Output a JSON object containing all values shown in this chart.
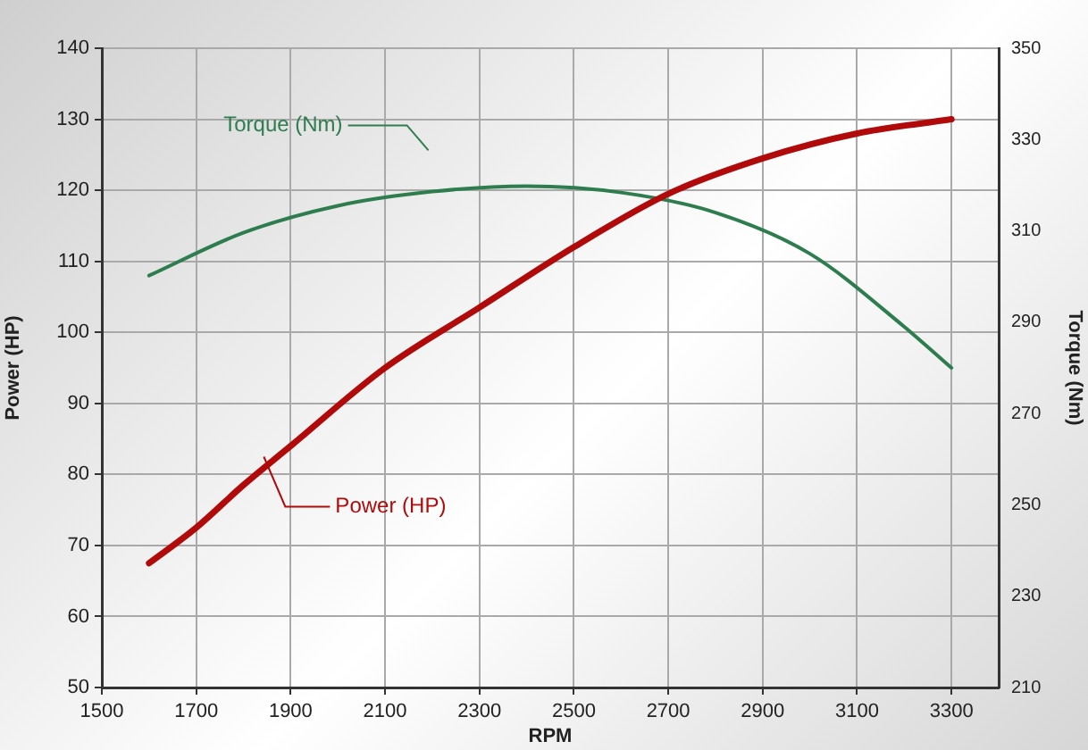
{
  "chart_data": {
    "type": "line",
    "xlabel": "RPM",
    "ylabel": "Power (HP)",
    "y2label": "Torque (Nm)",
    "xlim": [
      1500,
      3400
    ],
    "xticks": [
      1500,
      1700,
      1900,
      2100,
      2300,
      2500,
      2700,
      2900,
      3100,
      3300
    ],
    "ylim": [
      50,
      140
    ],
    "yticks": [
      50,
      60,
      70,
      80,
      90,
      100,
      110,
      120,
      130,
      140
    ],
    "y2lim": [
      210,
      350
    ],
    "y2ticks": [
      210,
      230,
      250,
      270,
      290,
      310,
      330,
      350
    ],
    "grid": true,
    "legend": "top left",
    "marker": "none",
    "line_style": "solid",
    "series": [
      {
        "name": "Power (HP)",
        "color": "#b00a0a",
        "x": [
          1600,
          1700,
          1800,
          1900,
          2100,
          2300,
          2500,
          2700,
          2900,
          3100,
          3300
        ],
        "values": [
          67.5,
          72.5,
          78.5,
          84,
          95,
          103.5,
          112,
          119.5,
          124.5,
          128,
          130
        ]
      },
      {
        "name": "Torque (Nm)",
        "color": "#2e7d4f",
        "axis": "y2",
        "x": [
          1600,
          1800,
          2000,
          2200,
          2400,
          2600,
          2800,
          3000,
          3200,
          3300
        ],
        "values": [
          300.2,
          309.6,
          315.5,
          318.6,
          319.8,
          318.4,
          314,
          305,
          289,
          280
        ]
      }
    ]
  }
}
